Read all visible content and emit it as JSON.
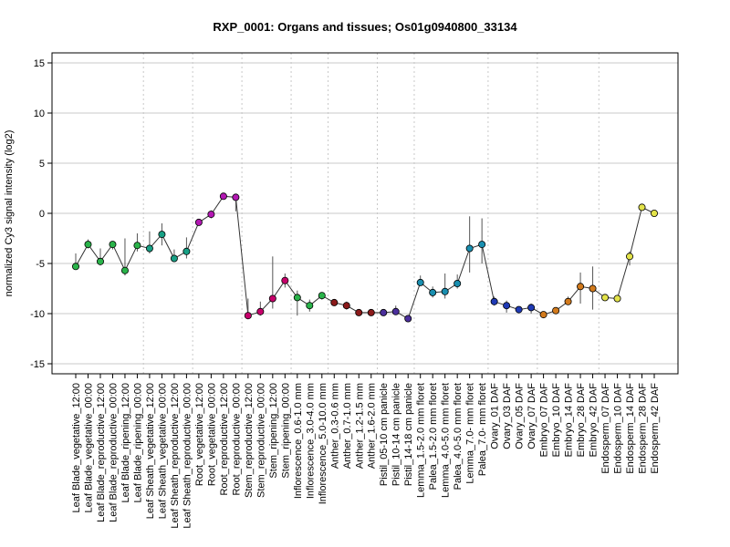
{
  "chart_data": {
    "type": "line",
    "title": "RXP_0001: Organs and tissues; Os01g0940800_33134",
    "ylabel": "normalized Cy3 signal intensity (log2)",
    "xlabel": "",
    "ylim": [
      -16,
      16
    ],
    "yticks": [
      -15,
      -10,
      -5,
      0,
      5,
      10,
      15
    ],
    "grid": true,
    "categories": [
      "Leaf Blade_vegetative_12:00",
      "Leaf Blade_vegetative_00:00",
      "Leaf Blade_reproductive_12:00",
      "Leaf Blade_reproductive_00:00",
      "Leaf Blade_ripening_12:00",
      "Leaf Blade_ripening_00:00",
      "Leaf Sheath_vegetative_12:00",
      "Leaf Sheath_vegetative_00:00",
      "Leaf Sheath_reproductive_12:00",
      "Leaf Sheath_reproductive_00:00",
      "Root_vegetative_12:00",
      "Root_vegetative_00:00",
      "Root_reproductive_12:00",
      "Root_reproductive_00:00",
      "Stem_reproductive_12:00",
      "Stem_reproductive_00:00",
      "Stem_ripening_12:00",
      "Stem_ripening_00:00",
      "Inflorescence_0.6-1.0 mm",
      "Inflorescence_3.0-4.0 mm",
      "Inflorescence_5.0-10.0 mm",
      "Anther_0.3-0.6 mm",
      "Anther_0.7-1.0 mm",
      "Anther_1.2-1.5 mm",
      "Anther_1.6-2.0 mm",
      "Pistil_05-10 cm panicle",
      "Pistil_10-14 cm panicle",
      "Pistil_14-18 cm panicle",
      "Lemma_1.5-2.0 mm floret",
      "Palea_1.5-2.0 mm floret",
      "Lemma_4.0-5.0 mm floret",
      "Palea_4.0-5.0 mm floret",
      "Lemma_7.0- mm floret",
      "Palea_7.0- mm floret",
      "Ovary_01 DAF",
      "Ovary_03 DAF",
      "Ovary_05 DAF",
      "Ovary_07 DAF",
      "Embryo_07 DAF",
      "Embryo_10 DAF",
      "Embryo_14 DAF",
      "Embryo_28 DAF",
      "Embryo_42 DAF",
      "Endosperm_07 DAF",
      "Endosperm_10 DAF",
      "Endosperm_14 DAF",
      "Endosperm_28 DAF",
      "Endosperm_42 DAF"
    ],
    "series": [
      {
        "values": [
          -5.3,
          -3.1,
          -4.8,
          -3.1,
          -5.7,
          -3.2,
          -3.5,
          -2.1,
          -4.5,
          -3.8,
          -0.9,
          -0.1,
          1.7,
          1.6,
          -10.2,
          -9.8,
          -8.5,
          -6.7,
          -8.4,
          -9.2,
          -8.2,
          -8.9,
          -9.2,
          -9.9,
          -9.9,
          -9.9,
          -9.8,
          -10.5,
          -6.9,
          -7.9,
          -7.8,
          -7.0,
          -3.5,
          -3.1,
          -8.8,
          -9.2,
          -9.6,
          -9.4,
          -10.1,
          -9.7,
          -8.8,
          -7.3,
          -7.5,
          -8.4,
          -8.5,
          -4.3,
          0.6,
          0.0
        ],
        "errors_low": [
          -5.6,
          -3.5,
          -5.2,
          -3.6,
          -6.2,
          -3.8,
          -4.0,
          -3.2,
          -4.8,
          -4.5,
          -1.2,
          -0.5,
          1.5,
          0.2,
          -10.4,
          -10.2,
          -9.5,
          -7.4,
          -10.2,
          -9.8,
          -8.6,
          -9.2,
          -9.6,
          -10.0,
          -10.0,
          -10.0,
          -10.1,
          -10.7,
          -7.2,
          -8.4,
          -8.5,
          -7.5,
          -5.9,
          -5.0,
          -9.2,
          -9.9,
          -9.8,
          -10.0,
          -10.3,
          -9.9,
          -9.1,
          -9.0,
          -9.6,
          -8.7,
          -8.7,
          -5.2,
          0.4,
          -0.2
        ],
        "errors_high": [
          -4.0,
          -2.6,
          -3.5,
          -2.8,
          -2.5,
          -2.0,
          -1.8,
          -1.0,
          -3.6,
          -2.4,
          -0.6,
          0.3,
          1.9,
          1.8,
          -8.5,
          -8.8,
          -4.3,
          -6.0,
          -7.7,
          -8.6,
          -7.9,
          -8.7,
          -8.8,
          -9.7,
          -9.8,
          -9.7,
          -9.2,
          -10.2,
          -6.2,
          -7.3,
          -6.0,
          -6.1,
          -0.3,
          -0.5,
          -8.3,
          -8.7,
          -9.3,
          -9.0,
          -9.8,
          -9.4,
          -8.3,
          -5.9,
          -5.3,
          -8.1,
          -8.2,
          -3.8,
          0.8,
          0.2
        ]
      }
    ],
    "point_colors": [
      "#2ab34a",
      "#2ab34a",
      "#2ab34a",
      "#2ab34a",
      "#2ab34a",
      "#2ab34a",
      "#17a085",
      "#17a085",
      "#17a085",
      "#17a085",
      "#b318b3",
      "#b318b3",
      "#b318b3",
      "#b318b3",
      "#c7006b",
      "#c7006b",
      "#c7006b",
      "#c7006b",
      "#2ab34a",
      "#2ab34a",
      "#2ab34a",
      "#8b1a1a",
      "#8b1a1a",
      "#8b1a1a",
      "#8b1a1a",
      "#4b2f9c",
      "#4b2f9c",
      "#4b2f9c",
      "#1a8fb0",
      "#1a8fb0",
      "#1a8fb0",
      "#1a8fb0",
      "#1a8fb0",
      "#1a8fb0",
      "#1f3ab5",
      "#1f3ab5",
      "#1f3ab5",
      "#1f3ab5",
      "#d27a1c",
      "#d27a1c",
      "#d27a1c",
      "#d27a1c",
      "#d27a1c",
      "#e3e34a",
      "#e3e34a",
      "#e3e34a",
      "#e3e34a",
      "#e3e34a"
    ],
    "vgrid_after": [
      5,
      9,
      13,
      17,
      20,
      24,
      27,
      33,
      37,
      42
    ]
  }
}
